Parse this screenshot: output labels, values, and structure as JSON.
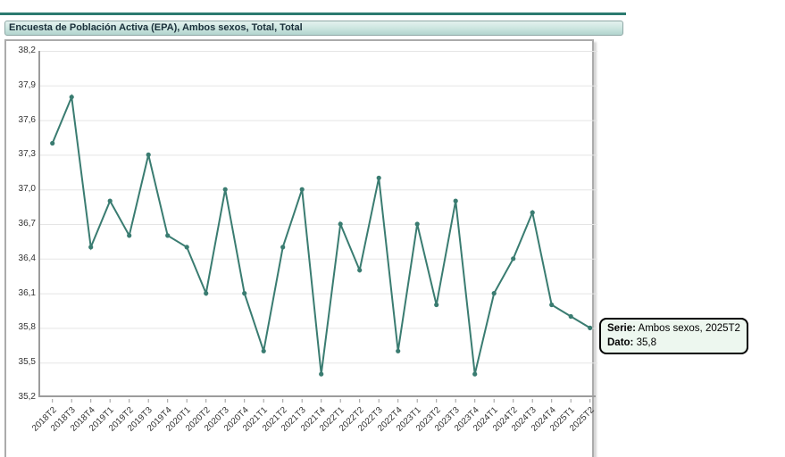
{
  "header": {
    "title": "Encuesta de Población Activa (EPA), Ambos sexos, Total, Total"
  },
  "tooltip": {
    "serie_label": "Serie:",
    "serie_value": "Ambos sexos, 2025T2",
    "dato_label": "Dato:",
    "dato_value": "35,8"
  },
  "colors": {
    "line": "#3a7c71",
    "marker": "#3a7c71",
    "accent_rule": "#2b7a6f",
    "titlebar_bg": "#c4e0da",
    "grid": "#e5e5e5",
    "axis": "#9c9c9c",
    "label_text": "#333333",
    "tooltip_bg": "#edf7ef",
    "tooltip_border": "#000000"
  },
  "chart_data": {
    "type": "line",
    "title": "Encuesta de Población Activa (EPA), Ambos sexos, Total, Total",
    "series_name": "Ambos sexos",
    "x": [
      "2018T2",
      "2018T3",
      "2018T4",
      "2019T1",
      "2019T2",
      "2019T3",
      "2019T4",
      "2020T1",
      "2020T2",
      "2020T3",
      "2020T4",
      "2021T1",
      "2021T2",
      "2021T3",
      "2021T4",
      "2022T1",
      "2022T2",
      "2022T3",
      "2022T4",
      "2023T1",
      "2023T2",
      "2023T3",
      "2023T4",
      "2024T1",
      "2024T2",
      "2024T3",
      "2024T4",
      "2025T1",
      "2025T2"
    ],
    "values": [
      37.4,
      37.8,
      36.5,
      36.9,
      36.6,
      37.3,
      36.6,
      36.5,
      36.1,
      37.0,
      36.1,
      35.6,
      36.5,
      37.0,
      35.4,
      36.7,
      36.3,
      37.1,
      35.6,
      36.7,
      36.0,
      36.9,
      35.4,
      36.1,
      36.4,
      36.8,
      36.0,
      35.9,
      35.8
    ],
    "ylim": [
      35.2,
      38.2
    ],
    "ytick_step": 0.3,
    "ytick_labels": [
      "38,2",
      "37,9",
      "37,6",
      "37,3",
      "37,0",
      "36,7",
      "36,4",
      "36,1",
      "35,8",
      "35,5",
      "35,2"
    ],
    "xlabel": "",
    "ylabel": "",
    "grid": true,
    "legend_position": "none",
    "marker": "circle"
  }
}
